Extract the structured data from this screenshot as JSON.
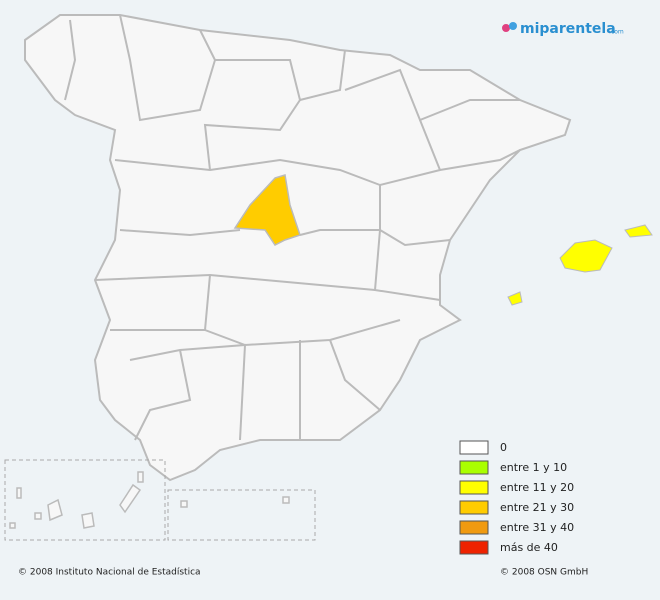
{
  "logo": {
    "name": "miparentela",
    "suffix": ".com"
  },
  "legend": [
    {
      "label": "0",
      "color": "#ffffff"
    },
    {
      "label": "entre 1 y 10",
      "color": "#aaff00"
    },
    {
      "label": "entre 11 y 20",
      "color": "#ffff00"
    },
    {
      "label": "entre 21 y 30",
      "color": "#ffcc00"
    },
    {
      "label": "entre 31 y 40",
      "color": "#f09a10"
    },
    {
      "label": "más de 40",
      "color": "#ee2200"
    }
  ],
  "footer": {
    "left": "© 2008 Instituto Nacional de Estadística",
    "right": "© 2008 OSN GmbH"
  }
}
